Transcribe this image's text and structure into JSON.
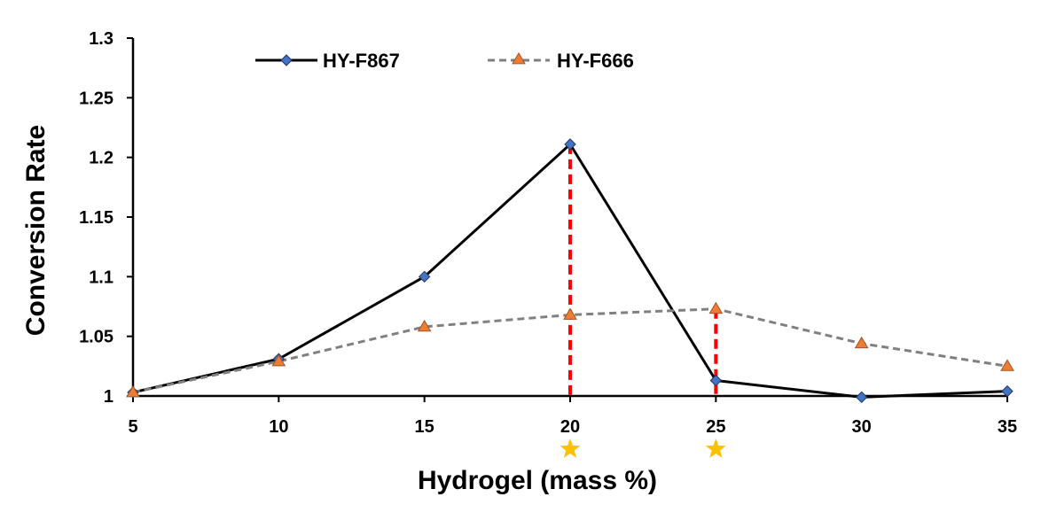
{
  "chart_data": {
    "type": "line",
    "title": "",
    "xlabel": "Hydrogel (mass %)",
    "ylabel": "Conversion Rate",
    "x": [
      5,
      10,
      15,
      20,
      25,
      30,
      35
    ],
    "xlim": [
      5,
      35
    ],
    "ylim": [
      1,
      1.3
    ],
    "x_ticks": [
      "5",
      "10",
      "15",
      "20",
      "25",
      "30",
      "35"
    ],
    "y_ticks": [
      "1",
      "1.05",
      "1.1",
      "1.15",
      "1.2",
      "1.25",
      "1.3"
    ],
    "grid": false,
    "legend_position": "top",
    "series": [
      {
        "name": "HY-F867",
        "values": [
          1.003,
          1.031,
          1.1,
          1.211,
          1.013,
          0.999,
          1.004
        ],
        "color": "#000000",
        "marker": "diamond",
        "marker_color": "#4472C4",
        "line_style": "solid"
      },
      {
        "name": "HY-F666",
        "values": [
          1.003,
          1.029,
          1.058,
          1.068,
          1.073,
          1.044,
          1.025
        ],
        "color": "#808080",
        "marker": "triangle",
        "marker_color": "#ED7D31",
        "line_style": "dashed"
      }
    ],
    "annotations": {
      "highlight_lines": [
        {
          "x": 20,
          "y": 1.211,
          "color": "#FF0000",
          "style": "dashed"
        },
        {
          "x": 25,
          "y": 1.073,
          "color": "#FF0000",
          "style": "dashed"
        }
      ],
      "star_markers": [
        {
          "x": 20,
          "color": "#FFC000"
        },
        {
          "x": 25,
          "color": "#FFC000"
        }
      ]
    }
  }
}
